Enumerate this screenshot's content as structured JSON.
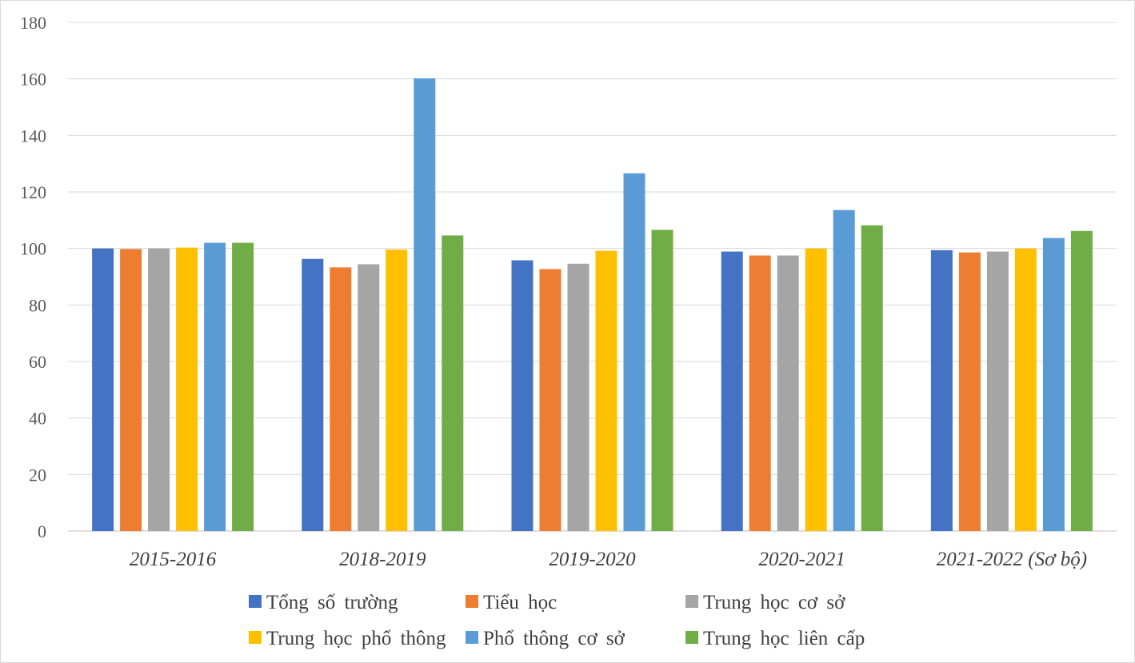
{
  "chart_data": {
    "type": "bar",
    "categories": [
      "2015-2016",
      "2018-2019",
      "2019-2020",
      "2020-2021",
      "2021-2022 (Sơ bộ)"
    ],
    "series": [
      {
        "name": "Tổng số trường",
        "color": "#4472C4",
        "values": [
          100.0,
          96.3,
          95.8,
          98.9,
          99.4
        ]
      },
      {
        "name": "Tiểu học",
        "color": "#ED7D31",
        "values": [
          99.8,
          93.3,
          92.7,
          97.5,
          98.6
        ]
      },
      {
        "name": "Trung học cơ sở",
        "color": "#A5A5A5",
        "values": [
          100.0,
          94.4,
          94.6,
          97.5,
          98.9
        ]
      },
      {
        "name": "Trung học phổ thông",
        "color": "#FFC000",
        "values": [
          100.3,
          99.6,
          99.2,
          100.0,
          100.0
        ]
      },
      {
        "name": "Phổ thông cơ sở",
        "color": "#5B9BD5",
        "values": [
          102.0,
          160.2,
          126.6,
          113.6,
          103.7
        ]
      },
      {
        "name": "Trung học liên cấp",
        "color": "#70AD47",
        "values": [
          102.0,
          104.6,
          106.6,
          108.2,
          106.2
        ]
      }
    ],
    "yticks": [
      "0",
      "20",
      "40",
      "60",
      "80",
      "100",
      "120",
      "140",
      "160",
      "180"
    ],
    "ylim": [
      0,
      180
    ],
    "grid": true,
    "legend_position": "bottom",
    "title": "",
    "xlabel": "",
    "ylabel": ""
  }
}
